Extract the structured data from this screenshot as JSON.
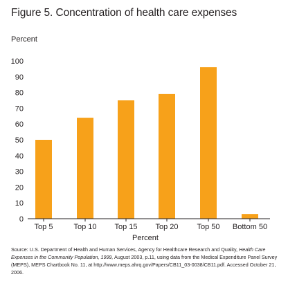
{
  "title": "Figure 5. Concentration of health care expenses",
  "colors": {
    "bar": "#f7a11a",
    "axis": "#231f20",
    "text": "#231f20"
  },
  "chart_data": {
    "type": "bar",
    "title": "Figure 5. Concentration of health care expenses",
    "ylabel": "Percent",
    "xlabel": "Percent",
    "categories": [
      "Top 5",
      "Top 10",
      "Top 15",
      "Top 20",
      "Top 50",
      "Bottom 50"
    ],
    "values": [
      50,
      64,
      75,
      79,
      96,
      3
    ],
    "ylim": [
      0,
      100
    ],
    "yticks": [
      0,
      10,
      20,
      30,
      40,
      50,
      60,
      70,
      80,
      90,
      100
    ],
    "grid": false,
    "legend": "none"
  },
  "source": {
    "part1": "Source: U.S. Department of Health and Human Services, Agency for Healthcare Research and Quality, ",
    "italic": "Health Care Expenses in the Community Population, 1999,",
    "part2": " August 2003, p.11, using data from the Medical Expenditure Panel Survey (MEPS), MEPS Chartbook No. 11, at http://www.meps.ahrq.gov/Papers/CB11_03-0038/CB11.pdf. Accessed October 21, 2006."
  }
}
